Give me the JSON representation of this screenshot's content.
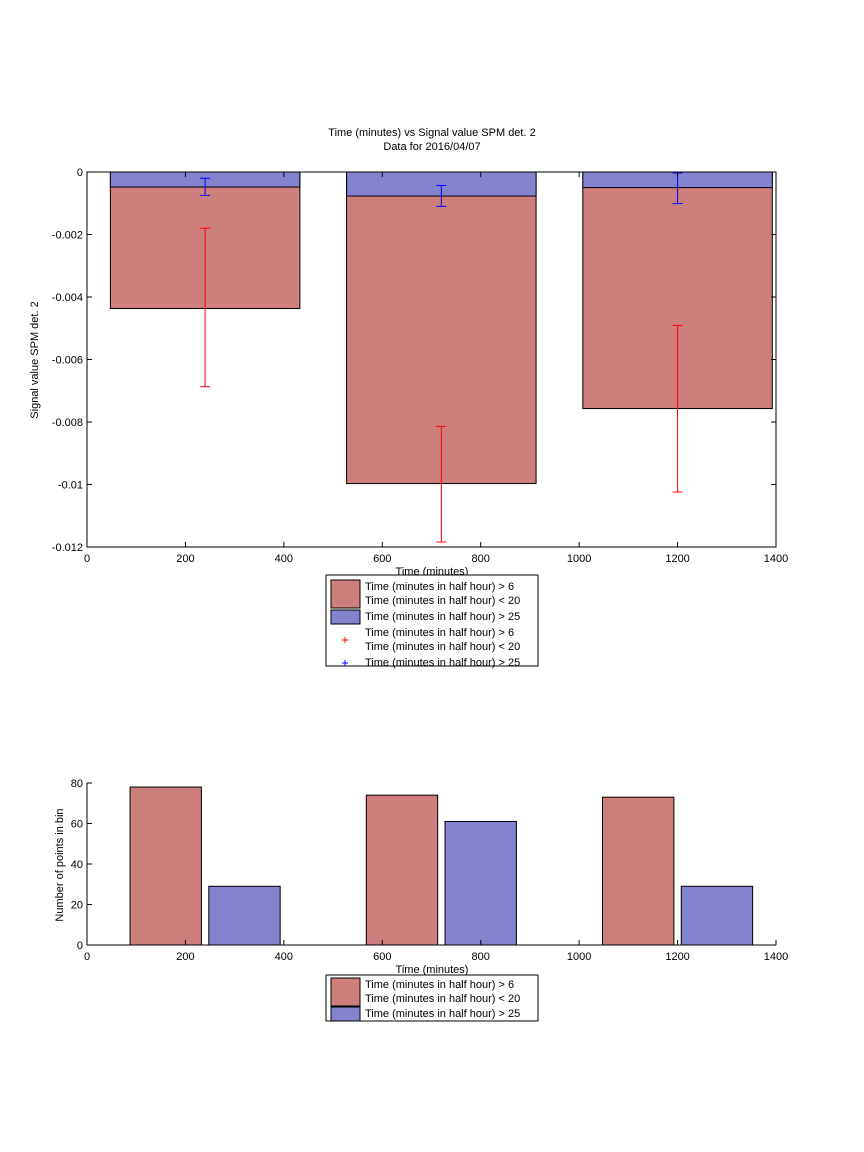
{
  "colors": {
    "series1": "#cc7f7d",
    "series2": "#8282cf",
    "err1": "#ff0000",
    "err2": "#0000ff"
  },
  "chart_data": [
    {
      "type": "bar",
      "title": "Time (minutes) vs Signal value SPM det. 2",
      "subtitle": "Data for 2016/04/07",
      "xlabel": "Time (minutes)",
      "ylabel": "Signal value SPM det. 2",
      "xlim": [
        0,
        1400
      ],
      "ylim": [
        -0.012,
        0
      ],
      "xticks": [
        0,
        200,
        400,
        600,
        800,
        1000,
        1200,
        1400
      ],
      "xtick_labels": [
        "0",
        "200",
        "400",
        "600",
        "800",
        "1000",
        "1200",
        "1400"
      ],
      "yticks": [
        0,
        -0.002,
        -0.004,
        -0.006,
        -0.008,
        -0.01,
        -0.012
      ],
      "ytick_labels": [
        "0",
        "-0.002",
        "-0.004",
        "-0.006",
        "-0.008",
        "-0.01",
        "-0.012"
      ],
      "bar_centers": [
        240,
        720,
        1200
      ],
      "bar_width": 385,
      "series": [
        {
          "name": "Time (minutes in half hour) > 6 Time (minutes in half hour) < 20",
          "values": [
            -0.00437,
            -0.00997,
            -0.00757
          ]
        },
        {
          "name": "Time (minutes in half hour) > 25",
          "values": [
            -0.00048,
            -0.00077,
            -0.0005
          ]
        }
      ],
      "errorbars": [
        {
          "name": "Time (minutes in half hour) > 6 Time (minutes in half hour) < 20",
          "x": [
            240,
            720,
            1200
          ],
          "low": [
            -0.00687,
            -0.01184,
            -0.01024
          ],
          "high": [
            -0.0018,
            -0.00814,
            -0.00491
          ]
        },
        {
          "name": "Time (minutes in half hour) > 25",
          "x": [
            240,
            720,
            1200
          ],
          "low": [
            -0.00075,
            -0.0011,
            -0.00101
          ],
          "high": [
            -0.0002,
            -0.00043,
            -3e-05
          ]
        }
      ],
      "legend": {
        "position": "below",
        "entries": [
          {
            "type": "patch",
            "series": 0,
            "lines": [
              "Time (minutes in half hour) > 6",
              "Time (minutes in half hour) < 20"
            ]
          },
          {
            "type": "patch",
            "series": 1,
            "lines": [
              "Time (minutes in half hour) > 25"
            ]
          },
          {
            "type": "marker",
            "series": 0,
            "lines": [
              "Time (minutes in half hour) > 6",
              "Time (minutes in half hour) < 20"
            ]
          },
          {
            "type": "marker",
            "series": 1,
            "lines": [
              "Time (minutes in half hour) > 25"
            ]
          }
        ]
      }
    },
    {
      "type": "bar",
      "title": "",
      "xlabel": "Time (minutes)",
      "ylabel": "Number of points in bin",
      "xlim": [
        0,
        1400
      ],
      "ylim": [
        0,
        80
      ],
      "xticks": [
        0,
        200,
        400,
        600,
        800,
        1000,
        1200,
        1400
      ],
      "xtick_labels": [
        "0",
        "200",
        "400",
        "600",
        "800",
        "1000",
        "1200",
        "1400"
      ],
      "yticks": [
        0,
        20,
        40,
        60,
        80
      ],
      "ytick_labels": [
        "0",
        "20",
        "40",
        "60",
        "80"
      ],
      "bar_width": 145,
      "series": [
        {
          "name": "Time (minutes in half hour) > 6 Time (minutes in half hour) < 20",
          "x": [
            160,
            640,
            1120
          ],
          "values": [
            78,
            74,
            73
          ]
        },
        {
          "name": "Time (minutes in half hour) > 25",
          "x": [
            320,
            800,
            1280
          ],
          "values": [
            29,
            61,
            29
          ]
        }
      ],
      "legend": {
        "position": "below",
        "entries": [
          {
            "type": "patch",
            "series": 0,
            "lines": [
              "Time (minutes in half hour) > 6",
              "Time (minutes in half hour) < 20"
            ]
          },
          {
            "type": "patch",
            "series": 1,
            "lines": [
              "Time (minutes in half hour) > 25"
            ]
          }
        ]
      }
    }
  ]
}
